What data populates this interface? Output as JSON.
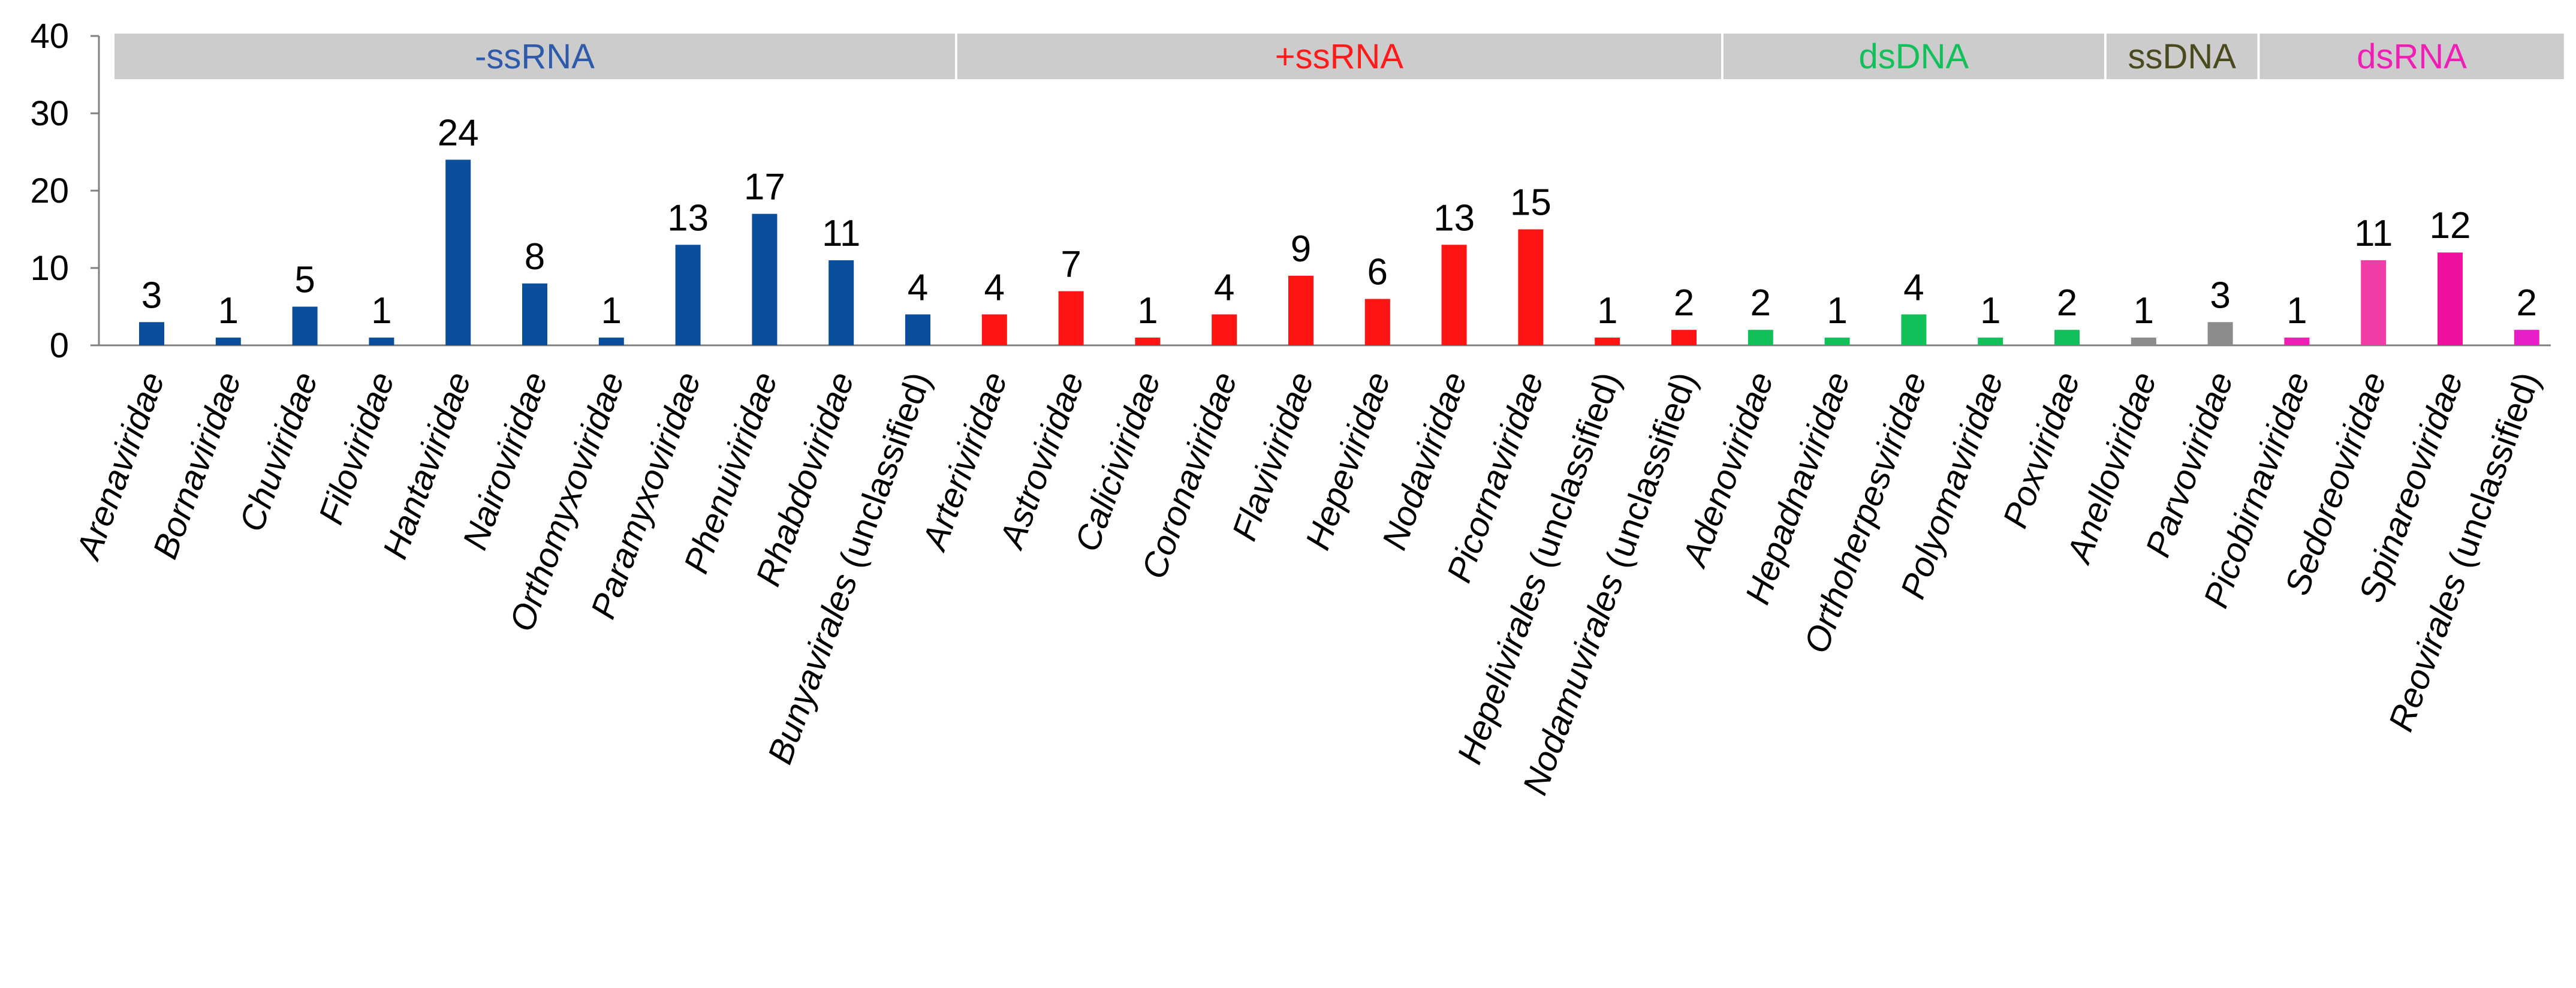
{
  "chart_data": {
    "type": "bar",
    "title": "",
    "xlabel": "",
    "ylabel": "",
    "ylim": [
      0,
      40
    ],
    "yticks": [
      0,
      10,
      20,
      30,
      40
    ],
    "grid": false,
    "categories": [
      {
        "prefix": "",
        "italic": "Arenaviridae",
        "suffix": ""
      },
      {
        "prefix": "",
        "italic": "Bornaviridae",
        "suffix": ""
      },
      {
        "prefix": "",
        "italic": "Chuviridae",
        "suffix": ""
      },
      {
        "prefix": "",
        "italic": "Filoviridae",
        "suffix": ""
      },
      {
        "prefix": "",
        "italic": "Hantaviridae",
        "suffix": ""
      },
      {
        "prefix": "",
        "italic": "Nairoviridae",
        "suffix": ""
      },
      {
        "prefix": "",
        "italic": "Orthomyxoviridae",
        "suffix": ""
      },
      {
        "prefix": "",
        "italic": "Paramyxoviridae",
        "suffix": ""
      },
      {
        "prefix": "",
        "italic": "Phenuiviridae",
        "suffix": ""
      },
      {
        "prefix": "",
        "italic": "Rhabdoviridae",
        "suffix": ""
      },
      {
        "prefix": "",
        "italic": "Bunyavirales",
        "suffix": " (unclassified)"
      },
      {
        "prefix": "",
        "italic": "Arteriviridae",
        "suffix": ""
      },
      {
        "prefix": "",
        "italic": "Astroviridae",
        "suffix": ""
      },
      {
        "prefix": "",
        "italic": "Caliciviridae",
        "suffix": ""
      },
      {
        "prefix": "",
        "italic": "Coronaviridae",
        "suffix": ""
      },
      {
        "prefix": "",
        "italic": "Flaviviridae",
        "suffix": ""
      },
      {
        "prefix": "",
        "italic": "Hepeviridae",
        "suffix": ""
      },
      {
        "prefix": "",
        "italic": "Nodaviridae",
        "suffix": ""
      },
      {
        "prefix": "",
        "italic": "Picornaviridae",
        "suffix": ""
      },
      {
        "prefix": "",
        "italic": "Hepelivirales",
        "suffix": " (unclassified)"
      },
      {
        "prefix": "",
        "italic": "Nodamuvirales",
        "suffix": " (unclassified)"
      },
      {
        "prefix": "",
        "italic": "Adenoviridae",
        "suffix": ""
      },
      {
        "prefix": "",
        "italic": "Hepadnaviridae",
        "suffix": ""
      },
      {
        "prefix": "",
        "italic": "Orthoherpesviridae",
        "suffix": ""
      },
      {
        "prefix": "",
        "italic": "Polyomaviridae",
        "suffix": ""
      },
      {
        "prefix": "",
        "italic": "Poxviridae",
        "suffix": ""
      },
      {
        "prefix": "",
        "italic": "Anelloviridae",
        "suffix": ""
      },
      {
        "prefix": "",
        "italic": "Parvoviridae",
        "suffix": ""
      },
      {
        "prefix": "",
        "italic": "Picobirnaviridae",
        "suffix": ""
      },
      {
        "prefix": "",
        "italic": "Sedoreoviridae",
        "suffix": ""
      },
      {
        "prefix": "",
        "italic": "Spinareoviridae",
        "suffix": ""
      },
      {
        "prefix": "",
        "italic": "Reovirales",
        "suffix": " (unclassified)"
      }
    ],
    "values": [
      3,
      1,
      5,
      1,
      24,
      8,
      1,
      13,
      17,
      11,
      4,
      4,
      7,
      1,
      4,
      9,
      6,
      13,
      15,
      1,
      2,
      2,
      1,
      4,
      1,
      2,
      1,
      3,
      1,
      11,
      12,
      2
    ],
    "bar_colors": [
      "#0B4F9C",
      "#0B4F9C",
      "#0B4F9C",
      "#0B4F9C",
      "#0B4F9C",
      "#0B4F9C",
      "#0B4F9C",
      "#0B4F9C",
      "#0B4F9C",
      "#0B4F9C",
      "#0B4F9C",
      "#FF1414",
      "#FF1414",
      "#FF1414",
      "#FF1414",
      "#FF1414",
      "#FF1414",
      "#FF1414",
      "#FF1414",
      "#FF1414",
      "#FF1414",
      "#12C05A",
      "#12C05A",
      "#12C05A",
      "#12C05A",
      "#12C05A",
      "#8C8C8C",
      "#8C8C8C",
      "#F01EB4",
      "#F03CA6",
      "#F010A0",
      "#E81EC8"
    ],
    "groups": [
      {
        "label": "-ssRNA",
        "start": 0,
        "end": 10,
        "color": "#2E5AAC"
      },
      {
        "label": "+ssRNA",
        "start": 11,
        "end": 20,
        "color": "#FF1A1A"
      },
      {
        "label": "dsDNA",
        "start": 21,
        "end": 25,
        "color": "#12C05A"
      },
      {
        "label": "ssDNA",
        "start": 26,
        "end": 27,
        "color": "#4A4A1E"
      },
      {
        "label": "dsRNA",
        "start": 28,
        "end": 31,
        "color": "#F01EB4"
      }
    ],
    "group_band_color": "#CCCCCC",
    "axis_color": "#808080"
  }
}
